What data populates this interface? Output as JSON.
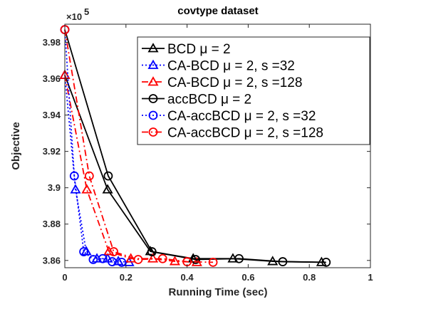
{
  "chart_data": {
    "type": "line",
    "title": "covtype dataset",
    "xlabel": "Running Time (sec)",
    "ylabel": "Objective",
    "xlim": [
      0,
      1
    ],
    "ylim": [
      3.856,
      3.99
    ],
    "x_ticks": [
      0,
      0.2,
      0.4,
      0.6,
      0.8,
      1
    ],
    "x_tick_labels": [
      "0",
      "0.2",
      "0.4",
      "0.6",
      "0.8",
      "1"
    ],
    "y_ticks": [
      3.86,
      3.88,
      3.9,
      3.92,
      3.94,
      3.96,
      3.98
    ],
    "y_tick_labels": [
      "3.86",
      "3.88",
      "3.9",
      "3.92",
      "3.94",
      "3.96",
      "3.98"
    ],
    "y_exponent_label": "×10",
    "y_exponent_power": "5",
    "grid": false,
    "legend_position": "top-right",
    "series": [
      {
        "name": "BCD μ = 2",
        "color": "#000000",
        "linestyle": "solid",
        "marker": "triangle",
        "x": [
          0,
          0.14,
          0.28,
          0.42,
          0.55,
          0.68,
          0.84
        ],
        "y": [
          3.962,
          3.899,
          3.865,
          3.861,
          3.861,
          3.8595,
          3.859
        ]
      },
      {
        "name": "CA-BCD μ = 2, s =32",
        "color": "#0000ff",
        "linestyle": "dotted",
        "marker": "triangle",
        "x": [
          0,
          0.035,
          0.07,
          0.105,
          0.14,
          0.175,
          0.21
        ],
        "y": [
          3.962,
          3.899,
          3.865,
          3.861,
          3.861,
          3.8595,
          3.859
        ]
      },
      {
        "name": "CA-BCD μ = 2, s =128",
        "color": "#ff0000",
        "linestyle": "dashdot",
        "marker": "triangle",
        "x": [
          0,
          0.072,
          0.144,
          0.216,
          0.288,
          0.36,
          0.432
        ],
        "y": [
          3.962,
          3.899,
          3.865,
          3.861,
          3.861,
          3.8595,
          3.859
        ]
      },
      {
        "name": "accBCD μ = 2",
        "color": "#000000",
        "linestyle": "solid",
        "marker": "circle",
        "x": [
          0,
          0.142,
          0.285,
          0.428,
          0.57,
          0.713,
          0.855
        ],
        "y": [
          3.987,
          3.9065,
          3.8648,
          3.8605,
          3.861,
          3.8593,
          3.859
        ]
      },
      {
        "name": "CA-accBCD μ = 2, s =32",
        "color": "#0000ff",
        "linestyle": "dotted",
        "marker": "circle",
        "x": [
          0,
          0.031,
          0.062,
          0.093,
          0.124,
          0.155,
          0.186
        ],
        "y": [
          3.987,
          3.9065,
          3.8648,
          3.8605,
          3.861,
          3.8593,
          3.859
        ]
      },
      {
        "name": "CA-accBCD μ = 2, s =128",
        "color": "#ff0000",
        "linestyle": "dashdot",
        "marker": "circle",
        "x": [
          0,
          0.08,
          0.16,
          0.24,
          0.32,
          0.4,
          0.485
        ],
        "y": [
          3.987,
          3.9065,
          3.8648,
          3.8605,
          3.861,
          3.8593,
          3.859
        ]
      }
    ]
  }
}
